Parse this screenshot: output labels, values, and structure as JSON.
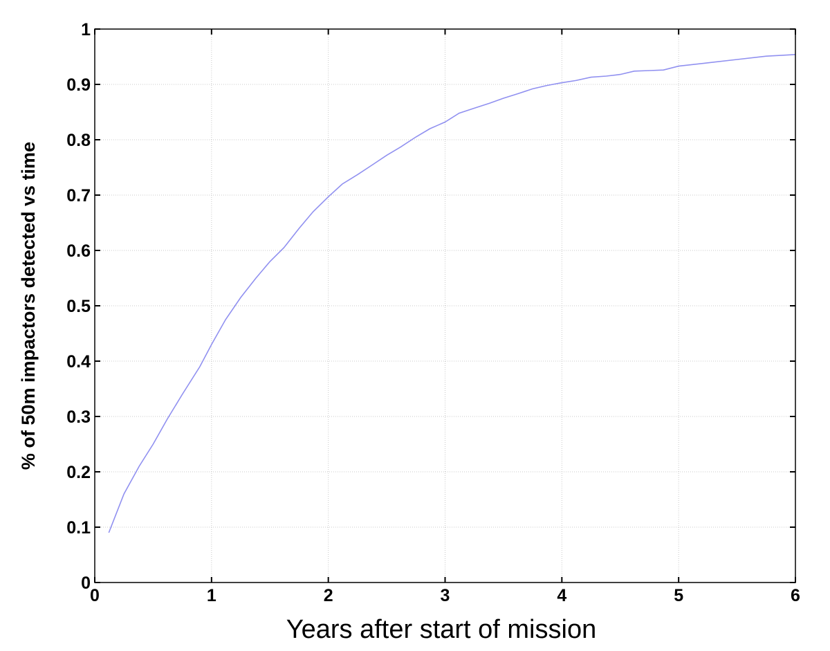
{
  "chart_data": {
    "type": "line",
    "title": "",
    "xlabel": "Years after start of mission",
    "ylabel": "% of 50m impactors detected vs time",
    "xlim": [
      0,
      6
    ],
    "ylim": [
      0,
      1
    ],
    "x_ticks": [
      0,
      1,
      2,
      3,
      4,
      5,
      6
    ],
    "x_tick_labels": [
      "0",
      "1",
      "2",
      "3",
      "4",
      "5",
      "6"
    ],
    "y_ticks": [
      0,
      0.1,
      0.2,
      0.3,
      0.4,
      0.5,
      0.6,
      0.7,
      0.8,
      0.9,
      1
    ],
    "y_tick_labels": [
      "0",
      "0.1",
      "0.2",
      "0.3",
      "0.4",
      "0.5",
      "0.6",
      "0.7",
      "0.8",
      "0.9",
      "1"
    ],
    "grid": true,
    "legend": "none",
    "line_color": "#9090f0",
    "series": [
      {
        "x": [
          0.12,
          0.25,
          0.38,
          0.5,
          0.62,
          0.75,
          0.9,
          1.0,
          1.12,
          1.25,
          1.38,
          1.5,
          1.62,
          1.75,
          1.87,
          2.0,
          2.12,
          2.25,
          2.38,
          2.5,
          2.62,
          2.75,
          2.87,
          3.0,
          3.12,
          3.25,
          3.38,
          3.5,
          3.62,
          3.75,
          3.87,
          4.0,
          4.12,
          4.25,
          4.38,
          4.5,
          4.62,
          4.75,
          4.87,
          5.0,
          5.25,
          5.5,
          5.75,
          6.0
        ],
        "y": [
          0.09,
          0.16,
          0.21,
          0.25,
          0.295,
          0.34,
          0.39,
          0.43,
          0.475,
          0.515,
          0.55,
          0.58,
          0.605,
          0.64,
          0.67,
          0.697,
          0.72,
          0.737,
          0.755,
          0.772,
          0.787,
          0.805,
          0.82,
          0.832,
          0.848,
          0.857,
          0.866,
          0.875,
          0.883,
          0.892,
          0.898,
          0.903,
          0.907,
          0.913,
          0.915,
          0.918,
          0.924,
          0.925,
          0.926,
          0.933,
          0.939,
          0.945,
          0.951,
          0.954
        ]
      }
    ]
  }
}
